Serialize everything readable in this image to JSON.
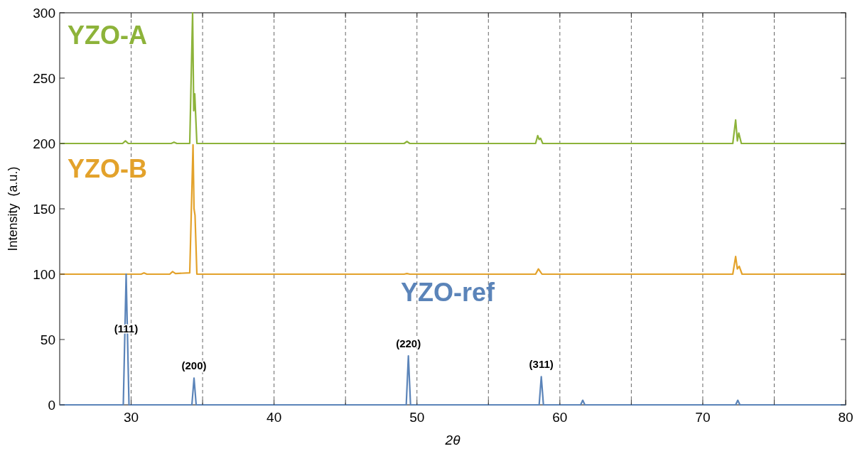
{
  "chart_data": {
    "type": "line",
    "xlabel": "2θ",
    "ylabel": "Intensity  (a.u.)",
    "xlim": [
      25,
      80
    ],
    "ylim": [
      0,
      300
    ],
    "xticks": [
      30,
      {
        "value": 35,
        "label": null
      },
      40,
      {
        "value": 45,
        "label": null
      },
      50,
      {
        "value": 55,
        "label": null
      },
      60,
      {
        "value": 65,
        "label": null
      },
      70,
      {
        "value": 75,
        "label": null
      },
      80
    ],
    "yticks": [
      0,
      50,
      100,
      150,
      200,
      250,
      300
    ],
    "grid": "x",
    "marker": "none",
    "line_style": "solid",
    "series": [
      {
        "name": "YZO-A",
        "color": "#8db33a",
        "x": [
          25,
          29.4,
          29.6,
          29.8,
          32.8,
          33.0,
          33.2,
          34.1,
          34.3,
          34.38,
          34.45,
          34.6,
          49.1,
          49.3,
          49.5,
          58.3,
          58.45,
          58.55,
          58.65,
          58.8,
          72.1,
          72.3,
          72.42,
          72.52,
          72.7,
          80
        ],
        "values": [
          200,
          200,
          202,
          200,
          200,
          201,
          200,
          200,
          300,
          225,
          238,
          200,
          200,
          201.5,
          200,
          200,
          206,
          203,
          204,
          200,
          200,
          218,
          202,
          208,
          200,
          200
        ]
      },
      {
        "name": "YZO-B",
        "color": "#e3a22b",
        "x": [
          25,
          30.7,
          30.9,
          31.1,
          32.7,
          32.9,
          33.1,
          34.1,
          34.33,
          34.4,
          34.47,
          34.6,
          49.1,
          49.3,
          49.5,
          58.3,
          58.5,
          58.75,
          72.1,
          72.3,
          72.42,
          72.55,
          72.75,
          80
        ],
        "values": [
          100,
          100,
          101,
          100,
          100,
          102,
          100.5,
          101,
          199,
          150,
          145,
          100,
          100,
          100.5,
          100,
          100,
          104,
          100,
          100,
          113.5,
          104,
          106,
          100,
          100
        ]
      },
      {
        "name": "YZO-ref",
        "color": "#5b84b9",
        "x": [
          25,
          29.45,
          29.65,
          29.85,
          34.25,
          34.4,
          34.55,
          49.25,
          49.4,
          49.55,
          58.55,
          58.7,
          58.85,
          61.45,
          61.6,
          61.75,
          72.3,
          72.45,
          72.6,
          80
        ],
        "values": [
          0,
          0,
          100,
          0,
          0,
          20.5,
          0,
          0,
          37.5,
          0,
          0,
          21.5,
          0,
          0,
          3.5,
          0,
          0,
          3.5,
          0,
          0
        ]
      }
    ],
    "annotations": [
      {
        "text": "(111)",
        "x": 29.65,
        "y": 49
      },
      {
        "text": "(200)",
        "x": 34.4,
        "y": 20.5
      },
      {
        "text": "(220)",
        "x": 49.4,
        "y": 37.5
      },
      {
        "text": "(311)",
        "x": 58.7,
        "y": 21.5
      }
    ]
  }
}
